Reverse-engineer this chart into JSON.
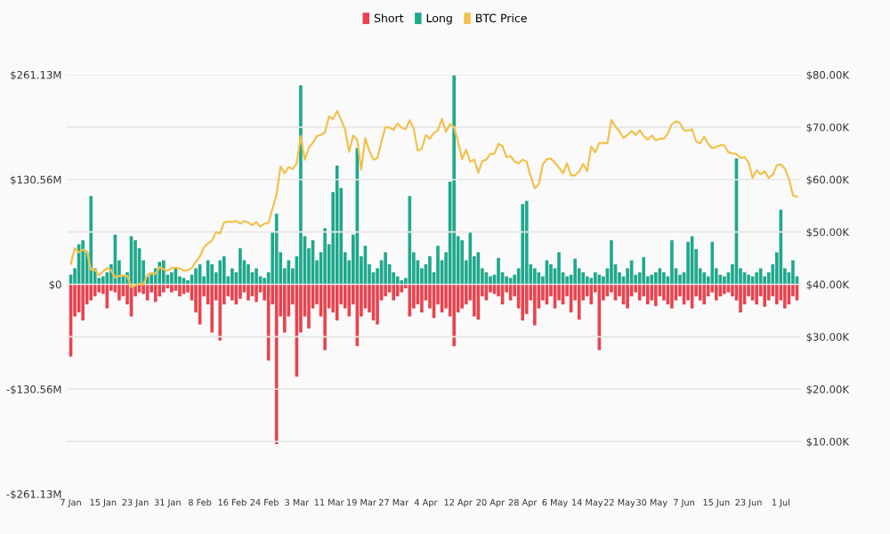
{
  "chart_data": {
    "type": "bar",
    "categories": [
      "7 Jan",
      null,
      null,
      null,
      null,
      null,
      null,
      null,
      "15 Jan",
      null,
      null,
      null,
      null,
      null,
      null,
      null,
      "23 Jan",
      null,
      null,
      null,
      null,
      null,
      null,
      null,
      "31 Jan",
      null,
      null,
      null,
      null,
      null,
      null,
      null,
      "8 Feb",
      null,
      null,
      null,
      null,
      null,
      null,
      null,
      "16 Feb",
      null,
      null,
      null,
      null,
      null,
      null,
      null,
      "24 Feb",
      null,
      null,
      null,
      null,
      null,
      null,
      null,
      "3 Mar",
      null,
      null,
      null,
      null,
      null,
      null,
      null,
      "11 Mar",
      null,
      null,
      null,
      null,
      null,
      null,
      null,
      "19 Mar",
      null,
      null,
      null,
      null,
      null,
      null,
      null,
      "27 Mar",
      null,
      null,
      null,
      null,
      null,
      null,
      null,
      "4 Apr",
      null,
      null,
      null,
      null,
      null,
      null,
      null,
      "12 Apr",
      null,
      null,
      null,
      null,
      null,
      null,
      null,
      "20 Apr",
      null,
      null,
      null,
      null,
      null,
      null,
      null,
      "28 Apr",
      null,
      null,
      null,
      null,
      null,
      null,
      null,
      "6 May",
      null,
      null,
      null,
      null,
      null,
      null,
      null,
      "14 May",
      null,
      null,
      null,
      null,
      null,
      null,
      null,
      "22 May",
      null,
      null,
      null,
      null,
      null,
      null,
      null,
      "30 May",
      null,
      null,
      null,
      null,
      null,
      null,
      null,
      "7 Jun",
      null,
      null,
      null,
      null,
      null,
      null,
      null,
      "15 Jun",
      null,
      null,
      null,
      null,
      null,
      null,
      null,
      "23 Jun",
      null,
      null,
      null,
      null,
      null,
      null,
      null,
      "1 Jul",
      null,
      null,
      null,
      null
    ],
    "series": [
      {
        "name": "Short",
        "color": "#e8434f",
        "values": [
          -90,
          -40,
          -35,
          -45,
          -25,
          -20,
          -15,
          -10,
          -12,
          -30,
          -8,
          -10,
          -20,
          -15,
          -25,
          -40,
          -15,
          -10,
          -12,
          -20,
          -10,
          -22,
          -15,
          -10,
          -5,
          -10,
          -8,
          -15,
          -12,
          -10,
          -20,
          -35,
          -50,
          -15,
          -25,
          -60,
          -20,
          -70,
          -25,
          -15,
          -20,
          -25,
          -18,
          -10,
          -20,
          -15,
          -22,
          -10,
          -20,
          -95,
          -25,
          -199,
          -40,
          -60,
          -40,
          -25,
          -115,
          -60,
          -40,
          -55,
          -30,
          -25,
          -40,
          -82,
          -30,
          -35,
          -45,
          -25,
          -30,
          -40,
          -25,
          -77,
          -40,
          -30,
          -35,
          -45,
          -50,
          -20,
          -15,
          -10,
          -20,
          -15,
          -10,
          -5,
          -40,
          -30,
          -25,
          -35,
          -20,
          -30,
          -42,
          -25,
          -35,
          -30,
          -40,
          -77,
          -35,
          -30,
          -25,
          -20,
          -40,
          -44,
          -15,
          -20,
          -10,
          -12,
          -15,
          -25,
          -10,
          -20,
          -15,
          -30,
          -45,
          -37,
          -20,
          -51,
          -30,
          -20,
          -25,
          -15,
          -30,
          -20,
          -25,
          -15,
          -35,
          -20,
          -44,
          -20,
          -15,
          -25,
          -10,
          -82,
          -20,
          -15,
          -10,
          -20,
          -15,
          -25,
          -30,
          -15,
          -10,
          -20,
          -15,
          -25,
          -20,
          -27,
          -15,
          -20,
          -25,
          -30,
          -20,
          -15,
          -25,
          -20,
          -30,
          -15,
          -20,
          -25,
          -15,
          -10,
          -20,
          -15,
          -12,
          -10,
          -15,
          -20,
          -35,
          -25,
          -15,
          -20,
          -25,
          -15,
          -28,
          -20,
          -15,
          -25,
          -20,
          -30,
          -25,
          -15,
          -20
        ]
      },
      {
        "name": "Long",
        "color": "#1ea88c",
        "values": [
          12,
          20,
          50,
          55,
          40,
          110,
          20,
          8,
          10,
          15,
          25,
          62,
          30,
          10,
          15,
          60,
          55,
          45,
          30,
          10,
          15,
          20,
          28,
          30,
          12,
          15,
          20,
          10,
          8,
          5,
          12,
          20,
          25,
          10,
          30,
          25,
          15,
          30,
          35,
          10,
          20,
          15,
          45,
          30,
          25,
          15,
          20,
          10,
          8,
          15,
          66,
          88,
          40,
          20,
          30,
          20,
          35,
          248,
          60,
          45,
          55,
          30,
          40,
          70,
          50,
          115,
          148,
          120,
          40,
          30,
          62,
          170,
          35,
          48,
          25,
          15,
          20,
          30,
          40,
          25,
          15,
          10,
          5,
          8,
          110,
          40,
          30,
          20,
          25,
          35,
          15,
          48,
          30,
          40,
          128,
          261,
          60,
          55,
          30,
          66,
          35,
          40,
          20,
          15,
          10,
          12,
          33,
          15,
          10,
          8,
          12,
          20,
          100,
          104,
          25,
          20,
          15,
          10,
          30,
          25,
          20,
          40,
          15,
          10,
          12,
          32,
          20,
          15,
          10,
          8,
          15,
          12,
          10,
          20,
          55,
          25,
          15,
          10,
          20,
          30,
          12,
          15,
          34,
          10,
          12,
          15,
          20,
          15,
          10,
          55,
          20,
          12,
          15,
          53,
          60,
          44,
          20,
          15,
          10,
          53,
          20,
          12,
          10,
          15,
          25,
          157,
          20,
          15,
          12,
          10,
          15,
          20,
          10,
          15,
          25,
          40,
          93,
          20,
          15,
          30,
          10
        ]
      },
      {
        "name": "BTC Price",
        "type": "line",
        "axis": "y2",
        "color": "#f2c14e",
        "values": [
          43900,
          46900,
          46100,
          46600,
          46300,
          42800,
          42800,
          41700,
          42500,
          43100,
          42700,
          41300,
          41600,
          41700,
          41600,
          39500,
          39800,
          40100,
          40000,
          41800,
          42100,
          42000,
          43300,
          42900,
          42600,
          43100,
          43200,
          43000,
          42600,
          42700,
          43100,
          44300,
          45300,
          47100,
          47800,
          48300,
          50000,
          49700,
          51800,
          52000,
          51900,
          52100,
          51600,
          52100,
          51800,
          51300,
          51900,
          51000,
          51600,
          51700,
          54500,
          57100,
          62500,
          61200,
          62400,
          62000,
          63100,
          68300,
          63800,
          66100,
          67000,
          68300,
          68500,
          69000,
          72100,
          71500,
          73100,
          71400,
          69500,
          65300,
          68400,
          67600,
          61900,
          67900,
          65500,
          63800,
          64100,
          67200,
          70000,
          69900,
          69500,
          70700,
          69900,
          69600,
          71300,
          69700,
          65500,
          65900,
          68500,
          67800,
          68900,
          69400,
          71600,
          69100,
          70600,
          70000,
          67200,
          63900,
          65700,
          63400,
          63800,
          61300,
          63500,
          63800,
          64900,
          64900,
          66800,
          66400,
          64300,
          64500,
          63400,
          63100,
          63800,
          63400,
          60600,
          58300,
          59100,
          62900,
          63900,
          64000,
          63200,
          62300,
          61200,
          63100,
          60800,
          60800,
          61500,
          63000,
          61600,
          66300,
          65200,
          67000,
          67000,
          66900,
          71400,
          70100,
          69200,
          67900,
          68500,
          69300,
          68500,
          69400,
          68300,
          67600,
          68400,
          67500,
          67800,
          67800,
          68800,
          70600,
          71100,
          70800,
          69400,
          69300,
          69600,
          67300,
          66900,
          68200,
          66800,
          66000,
          66200,
          66600,
          66500,
          65200,
          65000,
          64900,
          64100,
          64300,
          63300,
          60300,
          61800,
          61000,
          61600,
          60300,
          60900,
          62700,
          62900,
          62100,
          60200,
          57000,
          56700
        ]
      }
    ],
    "ylim": [
      -261.13,
      261.13
    ],
    "yticks": [
      {
        "value": -261.13,
        "label": "-$261.13M"
      },
      {
        "value": -130.56,
        "label": "-$130.56M"
      },
      {
        "value": 0,
        "label": "$0"
      },
      {
        "value": 130.56,
        "label": "$130.56M"
      },
      {
        "value": 261.13,
        "label": "$261.13M"
      }
    ],
    "y2lim": [
      0,
      80000
    ],
    "y2ticks": [
      {
        "value": 10000,
        "label": "$10.00K"
      },
      {
        "value": 20000,
        "label": "$20.00K"
      },
      {
        "value": 30000,
        "label": "$30.00K"
      },
      {
        "value": 40000,
        "label": "$40.00K"
      },
      {
        "value": 50000,
        "label": "$50.00K"
      },
      {
        "value": 60000,
        "label": "$60.00K"
      },
      {
        "value": 70000,
        "label": "$70.00K"
      },
      {
        "value": 80000,
        "label": "$80.00K"
      }
    ],
    "grid": "y2",
    "legend": "top"
  }
}
